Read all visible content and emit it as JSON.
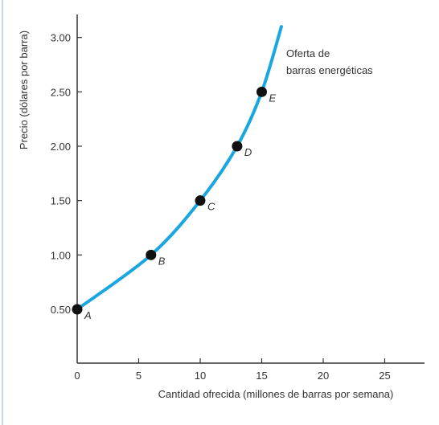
{
  "chart_data": {
    "type": "line",
    "xlabel": "Cantidad ofrecida (millones de barras por semana)",
    "ylabel": "Precio (dólares por barra)",
    "xlim": [
      0,
      28
    ],
    "ylim": [
      0,
      3.2
    ],
    "x_ticks": [
      0,
      5,
      10,
      15,
      20,
      25
    ],
    "x_tick_labels": [
      "0",
      "5",
      "10",
      "15",
      "20",
      "25"
    ],
    "y_ticks": [
      0.5,
      1.0,
      1.5,
      2.0,
      2.5,
      3.0
    ],
    "y_tick_labels": [
      "0.50",
      "1.00",
      "1.50",
      "2.00",
      "2.50",
      "3.00"
    ],
    "grid": false,
    "series": [
      {
        "curve_color": "#1aa7e0",
        "x": [
          0,
          6,
          10,
          13,
          15,
          16.6
        ],
        "y": [
          0.5,
          1.0,
          1.5,
          2.0,
          2.5,
          3.1
        ]
      }
    ],
    "points": [
      {
        "label": "A",
        "x": 0,
        "y": 0.5
      },
      {
        "label": "B",
        "x": 6,
        "y": 1.0
      },
      {
        "label": "C",
        "x": 10,
        "y": 1.5
      },
      {
        "label": "D",
        "x": 13,
        "y": 2.0
      },
      {
        "label": "E",
        "x": 15,
        "y": 2.5
      }
    ],
    "annotation": [
      "Oferta de",
      "barras energéticas"
    ],
    "point_color": "#111111",
    "axis_color": "#333333"
  }
}
